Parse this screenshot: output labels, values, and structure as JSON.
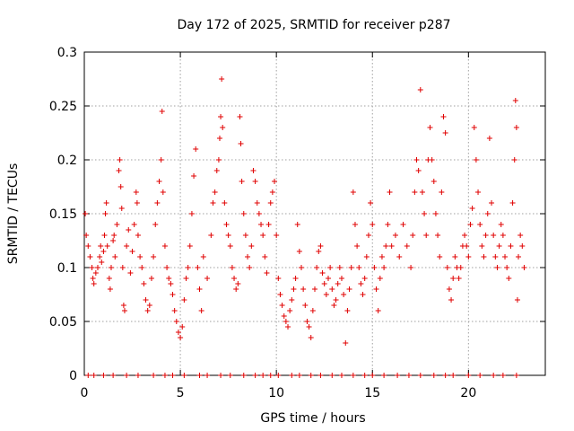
{
  "chart_data": {
    "type": "scatter",
    "title": "Day 172 of 2025, SRMTID for receiver p287",
    "xlabel": "GPS time / hours",
    "ylabel": "SRMTID / TECUs",
    "xlim": [
      0,
      24
    ],
    "ylim": [
      0,
      0.3
    ],
    "xticks": [
      0,
      5,
      10,
      15,
      20
    ],
    "xtick_labels": [
      "0",
      "5",
      "10",
      "15",
      "20"
    ],
    "yticks": [
      0,
      0.05,
      0.1,
      0.15,
      0.2,
      0.25,
      0.3
    ],
    "ytick_labels": [
      "0",
      "0.05",
      "0.1",
      "0.15",
      "0.2",
      "0.25",
      "0.3"
    ],
    "grid": true,
    "marker": "+",
    "color": "#e00000",
    "series": [
      {
        "name": "SRMTID",
        "points": [
          [
            0.05,
            0.15
          ],
          [
            0.1,
            0.13
          ],
          [
            0.2,
            0.12
          ],
          [
            0.3,
            0.11
          ],
          [
            0.4,
            0.1
          ],
          [
            0.45,
            0.09
          ],
          [
            0.5,
            0.085
          ],
          [
            0.6,
            0.095
          ],
          [
            0.7,
            0.1
          ],
          [
            0.8,
            0.11
          ],
          [
            0.85,
            0.12
          ],
          [
            0.9,
            0.105
          ],
          [
            1.0,
            0.115
          ],
          [
            1.05,
            0.13
          ],
          [
            1.1,
            0.15
          ],
          [
            1.15,
            0.16
          ],
          [
            1.2,
            0.12
          ],
          [
            1.3,
            0.09
          ],
          [
            1.35,
            0.08
          ],
          [
            1.4,
            0.1
          ],
          [
            1.5,
            0.125
          ],
          [
            1.55,
            0.13
          ],
          [
            1.6,
            0.11
          ],
          [
            1.7,
            0.14
          ],
          [
            1.8,
            0.19
          ],
          [
            1.85,
            0.2
          ],
          [
            1.9,
            0.175
          ],
          [
            1.95,
            0.155
          ],
          [
            2.0,
            0.1
          ],
          [
            2.05,
            0.065
          ],
          [
            2.1,
            0.06
          ],
          [
            2.2,
            0.12
          ],
          [
            2.3,
            0.135
          ],
          [
            2.4,
            0.095
          ],
          [
            2.5,
            0.115
          ],
          [
            2.6,
            0.14
          ],
          [
            2.7,
            0.17
          ],
          [
            2.75,
            0.16
          ],
          [
            2.8,
            0.13
          ],
          [
            2.9,
            0.11
          ],
          [
            3.0,
            0.1
          ],
          [
            3.1,
            0.085
          ],
          [
            3.2,
            0.07
          ],
          [
            3.3,
            0.06
          ],
          [
            3.4,
            0.065
          ],
          [
            3.5,
            0.09
          ],
          [
            3.6,
            0.11
          ],
          [
            3.7,
            0.14
          ],
          [
            3.8,
            0.16
          ],
          [
            3.9,
            0.18
          ],
          [
            4.0,
            0.2
          ],
          [
            4.05,
            0.245
          ],
          [
            4.1,
            0.17
          ],
          [
            4.2,
            0.12
          ],
          [
            4.3,
            0.1
          ],
          [
            4.4,
            0.09
          ],
          [
            4.5,
            0.085
          ],
          [
            4.6,
            0.075
          ],
          [
            4.7,
            0.06
          ],
          [
            4.8,
            0.05
          ],
          [
            4.9,
            0.04
          ],
          [
            5.0,
            0.035
          ],
          [
            5.1,
            0.045
          ],
          [
            5.2,
            0.07
          ],
          [
            5.3,
            0.09
          ],
          [
            5.4,
            0.1
          ],
          [
            5.5,
            0.12
          ],
          [
            5.6,
            0.15
          ],
          [
            5.7,
            0.185
          ],
          [
            5.8,
            0.21
          ],
          [
            5.9,
            0.1
          ],
          [
            6.0,
            0.08
          ],
          [
            6.1,
            0.06
          ],
          [
            6.2,
            0.11
          ],
          [
            6.4,
            0.09
          ],
          [
            6.6,
            0.13
          ],
          [
            6.7,
            0.16
          ],
          [
            6.8,
            0.17
          ],
          [
            6.9,
            0.19
          ],
          [
            7.0,
            0.2
          ],
          [
            7.05,
            0.22
          ],
          [
            7.1,
            0.24
          ],
          [
            7.15,
            0.275
          ],
          [
            7.2,
            0.23
          ],
          [
            7.3,
            0.16
          ],
          [
            7.4,
            0.14
          ],
          [
            7.5,
            0.13
          ],
          [
            7.6,
            0.12
          ],
          [
            7.7,
            0.1
          ],
          [
            7.8,
            0.09
          ],
          [
            7.9,
            0.08
          ],
          [
            8.0,
            0.085
          ],
          [
            8.1,
            0.24
          ],
          [
            8.15,
            0.215
          ],
          [
            8.2,
            0.18
          ],
          [
            8.3,
            0.15
          ],
          [
            8.4,
            0.13
          ],
          [
            8.5,
            0.11
          ],
          [
            8.6,
            0.1
          ],
          [
            8.7,
            0.12
          ],
          [
            8.8,
            0.19
          ],
          [
            8.9,
            0.18
          ],
          [
            9.0,
            0.16
          ],
          [
            9.1,
            0.15
          ],
          [
            9.2,
            0.14
          ],
          [
            9.3,
            0.13
          ],
          [
            9.4,
            0.11
          ],
          [
            9.5,
            0.095
          ],
          [
            9.6,
            0.14
          ],
          [
            9.7,
            0.16
          ],
          [
            9.8,
            0.17
          ],
          [
            9.9,
            0.18
          ],
          [
            10.0,
            0.13
          ],
          [
            10.1,
            0.09
          ],
          [
            10.2,
            0.075
          ],
          [
            10.3,
            0.065
          ],
          [
            10.4,
            0.055
          ],
          [
            10.5,
            0.05
          ],
          [
            10.6,
            0.045
          ],
          [
            10.7,
            0.06
          ],
          [
            10.8,
            0.07
          ],
          [
            10.9,
            0.08
          ],
          [
            11.0,
            0.09
          ],
          [
            11.1,
            0.14
          ],
          [
            11.2,
            0.115
          ],
          [
            11.3,
            0.1
          ],
          [
            11.4,
            0.08
          ],
          [
            11.5,
            0.065
          ],
          [
            11.6,
            0.05
          ],
          [
            11.7,
            0.045
          ],
          [
            11.8,
            0.035
          ],
          [
            11.9,
            0.06
          ],
          [
            12.0,
            0.08
          ],
          [
            12.1,
            0.1
          ],
          [
            12.2,
            0.115
          ],
          [
            12.3,
            0.12
          ],
          [
            12.4,
            0.095
          ],
          [
            12.5,
            0.085
          ],
          [
            12.6,
            0.075
          ],
          [
            12.7,
            0.09
          ],
          [
            12.8,
            0.1
          ],
          [
            12.9,
            0.08
          ],
          [
            13.0,
            0.065
          ],
          [
            13.1,
            0.07
          ],
          [
            13.2,
            0.085
          ],
          [
            13.3,
            0.1
          ],
          [
            13.4,
            0.09
          ],
          [
            13.5,
            0.075
          ],
          [
            13.6,
            0.03
          ],
          [
            13.7,
            0.06
          ],
          [
            13.8,
            0.08
          ],
          [
            13.9,
            0.1
          ],
          [
            14.0,
            0.17
          ],
          [
            14.1,
            0.14
          ],
          [
            14.2,
            0.12
          ],
          [
            14.3,
            0.1
          ],
          [
            14.4,
            0.085
          ],
          [
            14.5,
            0.075
          ],
          [
            14.6,
            0.09
          ],
          [
            14.7,
            0.11
          ],
          [
            14.8,
            0.13
          ],
          [
            14.9,
            0.16
          ],
          [
            15.0,
            0.14
          ],
          [
            15.1,
            0.1
          ],
          [
            15.2,
            0.08
          ],
          [
            15.3,
            0.06
          ],
          [
            15.4,
            0.09
          ],
          [
            15.5,
            0.11
          ],
          [
            15.6,
            0.1
          ],
          [
            15.7,
            0.12
          ],
          [
            15.8,
            0.14
          ],
          [
            15.9,
            0.17
          ],
          [
            16.0,
            0.12
          ],
          [
            16.2,
            0.13
          ],
          [
            16.4,
            0.11
          ],
          [
            16.6,
            0.14
          ],
          [
            16.8,
            0.12
          ],
          [
            17.0,
            0.1
          ],
          [
            17.1,
            0.13
          ],
          [
            17.2,
            0.17
          ],
          [
            17.3,
            0.2
          ],
          [
            17.4,
            0.19
          ],
          [
            17.5,
            0.265
          ],
          [
            17.6,
            0.17
          ],
          [
            17.7,
            0.15
          ],
          [
            17.8,
            0.13
          ],
          [
            17.9,
            0.2
          ],
          [
            18.0,
            0.23
          ],
          [
            18.1,
            0.2
          ],
          [
            18.2,
            0.18
          ],
          [
            18.3,
            0.15
          ],
          [
            18.4,
            0.13
          ],
          [
            18.5,
            0.11
          ],
          [
            18.6,
            0.17
          ],
          [
            18.7,
            0.24
          ],
          [
            18.8,
            0.225
          ],
          [
            18.9,
            0.1
          ],
          [
            19.0,
            0.08
          ],
          [
            19.1,
            0.07
          ],
          [
            19.2,
            0.09
          ],
          [
            19.3,
            0.11
          ],
          [
            19.4,
            0.1
          ],
          [
            19.5,
            0.09
          ],
          [
            19.6,
            0.1
          ],
          [
            19.7,
            0.12
          ],
          [
            19.8,
            0.13
          ],
          [
            19.9,
            0.12
          ],
          [
            20.0,
            0.11
          ],
          [
            20.1,
            0.14
          ],
          [
            20.2,
            0.155
          ],
          [
            20.3,
            0.23
          ],
          [
            20.4,
            0.2
          ],
          [
            20.5,
            0.17
          ],
          [
            20.6,
            0.14
          ],
          [
            20.7,
            0.12
          ],
          [
            20.8,
            0.11
          ],
          [
            20.9,
            0.13
          ],
          [
            21.0,
            0.15
          ],
          [
            21.1,
            0.22
          ],
          [
            21.2,
            0.16
          ],
          [
            21.3,
            0.13
          ],
          [
            21.4,
            0.11
          ],
          [
            21.5,
            0.1
          ],
          [
            21.6,
            0.12
          ],
          [
            21.7,
            0.14
          ],
          [
            21.8,
            0.13
          ],
          [
            21.9,
            0.11
          ],
          [
            22.0,
            0.1
          ],
          [
            22.1,
            0.09
          ],
          [
            22.2,
            0.12
          ],
          [
            22.3,
            0.16
          ],
          [
            22.4,
            0.2
          ],
          [
            22.45,
            0.255
          ],
          [
            22.5,
            0.23
          ],
          [
            22.55,
            0.07
          ],
          [
            22.6,
            0.11
          ],
          [
            22.7,
            0.13
          ],
          [
            22.8,
            0.12
          ],
          [
            22.9,
            0.1
          ]
        ]
      }
    ],
    "zero_points_x": [
      0.2,
      0.5,
      1.0,
      1.5,
      2.2,
      2.8,
      3.6,
      4.2,
      4.6,
      5.2,
      6.0,
      6.4,
      7.1,
      7.6,
      8.3,
      8.9,
      9.3,
      9.7,
      10.1,
      10.8,
      11.2,
      11.8,
      12.3,
      12.9,
      13.4,
      14.0,
      14.6,
      15.0,
      15.6,
      16.3,
      16.9,
      17.5,
      18.2,
      18.8,
      19.2,
      20.0,
      20.6,
      21.3,
      21.8,
      22.5
    ]
  }
}
